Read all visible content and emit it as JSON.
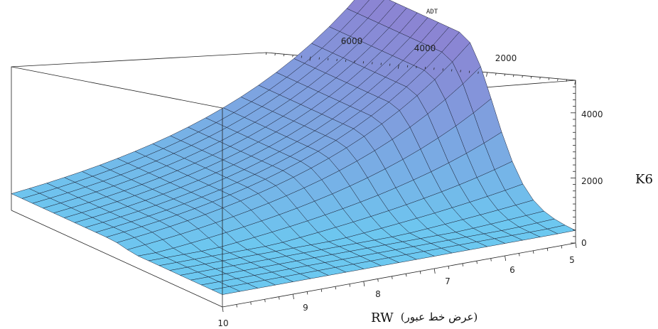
{
  "chart_data": {
    "type": "surface",
    "x_axis": {
      "label": "ADT",
      "ticks": [
        "6000",
        "4000",
        "2000"
      ],
      "range": [
        0,
        7000
      ]
    },
    "y_axis": {
      "label": "RW",
      "label_suffix": "(عرض خط عبور)",
      "ticks": [
        "5",
        "6",
        "7",
        "8",
        "9",
        "10"
      ],
      "range": [
        5,
        10
      ]
    },
    "z_axis": {
      "label": "K6",
      "ticks": [
        "0",
        "2000",
        "4000"
      ],
      "range": [
        0,
        5000
      ]
    },
    "surface": {
      "grid": [
        20,
        20
      ],
      "peak_value": 4850,
      "peak_adt_range": [
        3800,
        7000
      ],
      "peak_at_rw": 5,
      "min_value_at_rw10": 500
    },
    "colors": {
      "low": "#66d6f6",
      "high": "#8c82d2",
      "peak_top": "#5a8cf4"
    }
  }
}
